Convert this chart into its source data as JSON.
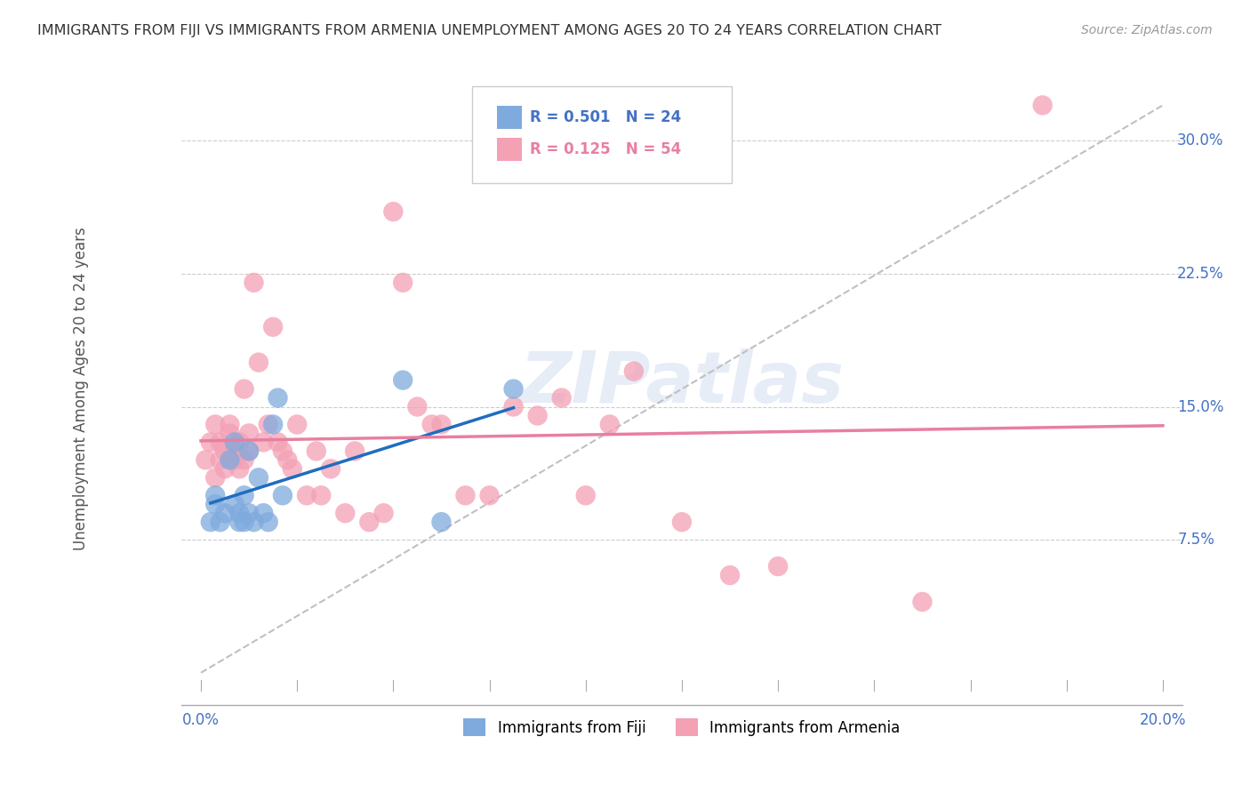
{
  "title": "IMMIGRANTS FROM FIJI VS IMMIGRANTS FROM ARMENIA UNEMPLOYMENT AMONG AGES 20 TO 24 YEARS CORRELATION CHART",
  "source": "Source: ZipAtlas.com",
  "ylabel": "Unemployment Among Ages 20 to 24 years",
  "fiji_R": "R = 0.501",
  "fiji_N": "N = 24",
  "armenia_R": "R = 0.125",
  "armenia_N": "N = 54",
  "fiji_color": "#7faadd",
  "armenia_color": "#f4a0b5",
  "fiji_line_color": "#1f6dbf",
  "armenia_line_color": "#e87fa0",
  "dashed_line_color": "#c0c0c0",
  "watermark": "ZIPatlas",
  "fiji_x": [
    0.002,
    0.003,
    0.003,
    0.004,
    0.005,
    0.006,
    0.007,
    0.007,
    0.008,
    0.008,
    0.009,
    0.009,
    0.01,
    0.01,
    0.011,
    0.012,
    0.013,
    0.014,
    0.015,
    0.016,
    0.017,
    0.042,
    0.05,
    0.065
  ],
  "fiji_y": [
    0.085,
    0.1,
    0.095,
    0.085,
    0.09,
    0.12,
    0.13,
    0.095,
    0.09,
    0.085,
    0.085,
    0.1,
    0.125,
    0.09,
    0.085,
    0.11,
    0.09,
    0.085,
    0.14,
    0.155,
    0.1,
    0.165,
    0.085,
    0.16
  ],
  "armenia_x": [
    0.001,
    0.002,
    0.003,
    0.003,
    0.004,
    0.004,
    0.005,
    0.005,
    0.006,
    0.006,
    0.007,
    0.007,
    0.008,
    0.008,
    0.009,
    0.009,
    0.01,
    0.01,
    0.011,
    0.012,
    0.013,
    0.014,
    0.015,
    0.016,
    0.017,
    0.018,
    0.019,
    0.02,
    0.022,
    0.024,
    0.025,
    0.027,
    0.03,
    0.032,
    0.035,
    0.038,
    0.04,
    0.042,
    0.045,
    0.048,
    0.05,
    0.055,
    0.06,
    0.065,
    0.07,
    0.075,
    0.08,
    0.085,
    0.09,
    0.1,
    0.11,
    0.12,
    0.15,
    0.175
  ],
  "armenia_y": [
    0.12,
    0.13,
    0.11,
    0.14,
    0.12,
    0.13,
    0.125,
    0.115,
    0.135,
    0.14,
    0.125,
    0.12,
    0.13,
    0.115,
    0.12,
    0.16,
    0.125,
    0.135,
    0.22,
    0.175,
    0.13,
    0.14,
    0.195,
    0.13,
    0.125,
    0.12,
    0.115,
    0.14,
    0.1,
    0.125,
    0.1,
    0.115,
    0.09,
    0.125,
    0.085,
    0.09,
    0.26,
    0.22,
    0.15,
    0.14,
    0.14,
    0.1,
    0.1,
    0.15,
    0.145,
    0.155,
    0.1,
    0.14,
    0.17,
    0.085,
    0.055,
    0.06,
    0.04,
    0.32
  ],
  "xmin": 0.0,
  "xmax": 0.2,
  "ymin": 0.0,
  "ymax": 0.32,
  "yticks": [
    0.075,
    0.15,
    0.225,
    0.3
  ],
  "ytick_labels": [
    "7.5%",
    "15.0%",
    "22.5%",
    "30.0%"
  ]
}
